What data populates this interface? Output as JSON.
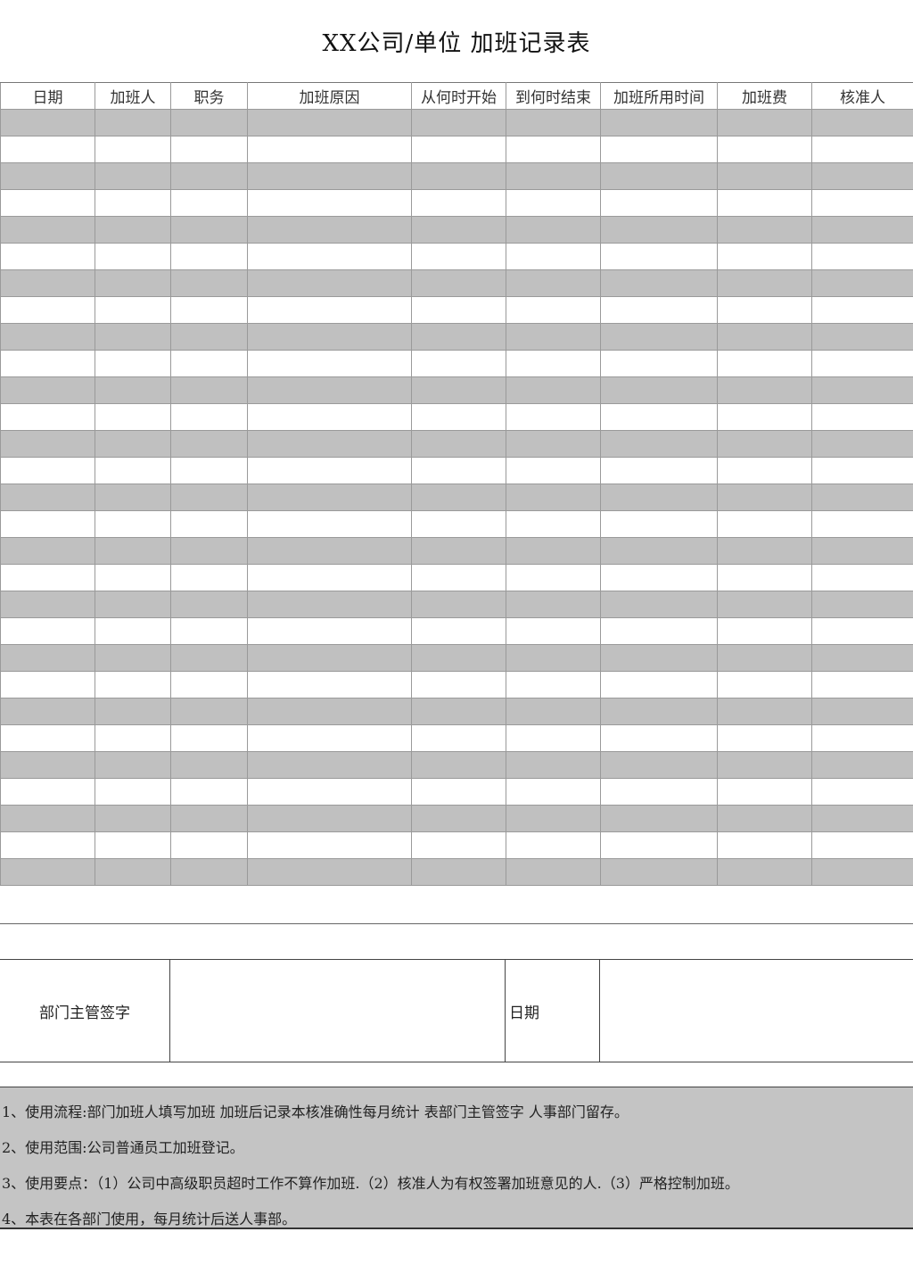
{
  "title": "XX公司/单位 加班记录表",
  "table": {
    "headers": [
      "日期",
      "加班人",
      "职务",
      "加班原因",
      "从何时开始",
      "到何时结束",
      "加班所用时间",
      "加班费",
      "核准人"
    ],
    "row_count": 29
  },
  "signature": {
    "label": "部门主管签字",
    "date_label": "日期"
  },
  "notes": [
    "1、使用流程:部门加班人填写加班 加班后记录本核准确性每月统计 表部门主管签字 人事部门留存。",
    "2、使用范围:公司普通员工加班登记。",
    "3、使用要点：（1）公司中高级职员超时工作不算作加班.（2）核准人为有权签署加班意见的人.（3）严格控制加班。",
    "4、本表在各部门使用，每月统计后送人事部。"
  ]
}
